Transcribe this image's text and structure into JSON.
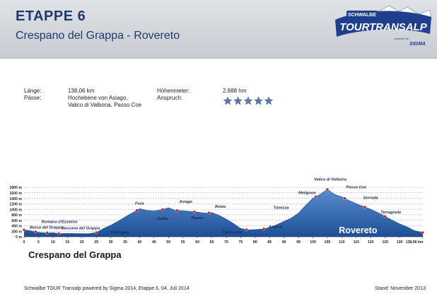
{
  "header": {
    "title": "ETAPPE 6",
    "subtitle": "Crespano del Grappa - Rovereto",
    "logo": {
      "top": "SCHWALBE",
      "main": "TOURTRANSALP",
      "sub": "powered by",
      "sponsor": "SIGMA"
    }
  },
  "info": {
    "length_label": "Länge:",
    "length_value": "138,06 km",
    "passes_label": "Pässe:",
    "passes_lines": [
      "Hochebene von Asiago,",
      "Valico di Valbona, Passo Coe"
    ],
    "elevation_label": "Höhenmeter:",
    "elevation_value": "2.888 hm",
    "difficulty_label": "Anspruch:",
    "difficulty_stars": 5
  },
  "chart_data": {
    "type": "area",
    "xlabel": "",
    "ylabel": "",
    "xlim": [
      0,
      138.06
    ],
    "ylim": [
      0,
      1800
    ],
    "x_ticks": [
      "0",
      "5",
      "10",
      "15",
      "20",
      "25",
      "30",
      "35",
      "40",
      "45",
      "50",
      "55",
      "60",
      "65",
      "70",
      "75",
      "80",
      "85",
      "90",
      "95",
      "100",
      "105",
      "110",
      "115",
      "120",
      "125",
      "130",
      "138,06 km"
    ],
    "y_ticks": [
      "0 m",
      "200 m",
      "400 m",
      "600 m",
      "800 m",
      "1000 m",
      "1200 m",
      "1400 m",
      "1600 m",
      "1800 m"
    ],
    "profile": [
      [
        0,
        250
      ],
      [
        2.5,
        210
      ],
      [
        5,
        160
      ],
      [
        7.5,
        140
      ],
      [
        10,
        145
      ],
      [
        12.5,
        110
      ],
      [
        15,
        120
      ],
      [
        20,
        110
      ],
      [
        22.5,
        115
      ],
      [
        25,
        150
      ],
      [
        27.5,
        300
      ],
      [
        30,
        420
      ],
      [
        32.5,
        560
      ],
      [
        35,
        720
      ],
      [
        37.5,
        870
      ],
      [
        40,
        1020
      ],
      [
        42.5,
        960
      ],
      [
        45,
        940
      ],
      [
        47.5,
        980
      ],
      [
        50,
        1050
      ],
      [
        52.5,
        960
      ],
      [
        55,
        950
      ],
      [
        57.5,
        920
      ],
      [
        60,
        900
      ],
      [
        62.5,
        860
      ],
      [
        65,
        880
      ],
      [
        67.5,
        780
      ],
      [
        70,
        640
      ],
      [
        72.5,
        480
      ],
      [
        75,
        300
      ],
      [
        77.5,
        250
      ],
      [
        80,
        260
      ],
      [
        82.5,
        280
      ],
      [
        85,
        330
      ],
      [
        87.5,
        440
      ],
      [
        90,
        560
      ],
      [
        92.5,
        680
      ],
      [
        95,
        860
      ],
      [
        97.5,
        1140
      ],
      [
        100,
        1400
      ],
      [
        102.5,
        1540
      ],
      [
        105,
        1720
      ],
      [
        107.5,
        1540
      ],
      [
        110,
        1450
      ],
      [
        112.5,
        1320
      ],
      [
        115,
        1200
      ],
      [
        117.5,
        1100
      ],
      [
        120,
        1000
      ],
      [
        122.5,
        880
      ],
      [
        125,
        740
      ],
      [
        127.5,
        600
      ],
      [
        130,
        470
      ],
      [
        132.5,
        360
      ],
      [
        135,
        230
      ],
      [
        138.06,
        150
      ]
    ],
    "waypoints": [
      {
        "name": "Borso del Grappa",
        "km": 2,
        "alt": 290,
        "anchor": "start"
      },
      {
        "name": "Romano d'Ezzelino",
        "km": 6,
        "alt": 500,
        "anchor": "start"
      },
      {
        "name": "Bassano del Grappa",
        "km": 13,
        "alt": 270,
        "anchor": "start"
      },
      {
        "name": "Valstagna",
        "km": 30,
        "alt": 110,
        "anchor": "start"
      },
      {
        "name": "Foza",
        "km": 40,
        "alt": 1170,
        "anchor": "middle"
      },
      {
        "name": "Gallio",
        "km": 50,
        "alt": 620,
        "anchor": "end"
      },
      {
        "name": "Asiago",
        "km": 56,
        "alt": 1230,
        "anchor": "middle"
      },
      {
        "name": "Roana",
        "km": 60,
        "alt": 640,
        "anchor": "middle"
      },
      {
        "name": "Rotzo",
        "km": 68,
        "alt": 1060,
        "anchor": "middle"
      },
      {
        "name": "Pedescala",
        "km": 72,
        "alt": 120,
        "anchor": "middle"
      },
      {
        "name": "Arsiero",
        "km": 87,
        "alt": 320,
        "anchor": "middle"
      },
      {
        "name": "Tonezza",
        "km": 89,
        "alt": 1020,
        "anchor": "middle"
      },
      {
        "name": "Melignon",
        "km": 98,
        "alt": 1560,
        "anchor": "middle"
      },
      {
        "name": "Valico di Valbona",
        "km": 106,
        "alt": 2040,
        "anchor": "middle"
      },
      {
        "name": "Passo Coe",
        "km": 115,
        "alt": 1760,
        "anchor": "middle"
      },
      {
        "name": "Serrada",
        "km": 120,
        "alt": 1370,
        "anchor": "middle"
      },
      {
        "name": "Terragnolo",
        "km": 127,
        "alt": 850,
        "anchor": "middle"
      }
    ],
    "markers_km": [
      0,
      4,
      8,
      12,
      25,
      39,
      48,
      53,
      59,
      64,
      77,
      83,
      101,
      105,
      111,
      118,
      125,
      138
    ],
    "start_label": "Crespano del Grappa",
    "end_label": "Rovereto"
  },
  "footer": {
    "left": "Schwalbe TOUR Transalp powered by Sigma 2014, Etappe 6, 04. Juli 2014",
    "right": "Stand: November 2013"
  },
  "colors": {
    "title": "#1f3a6e",
    "area_top": "#5a8ccc",
    "area_bottom": "#1c4f96",
    "marker": "#cc1111",
    "grid": "#999999"
  }
}
